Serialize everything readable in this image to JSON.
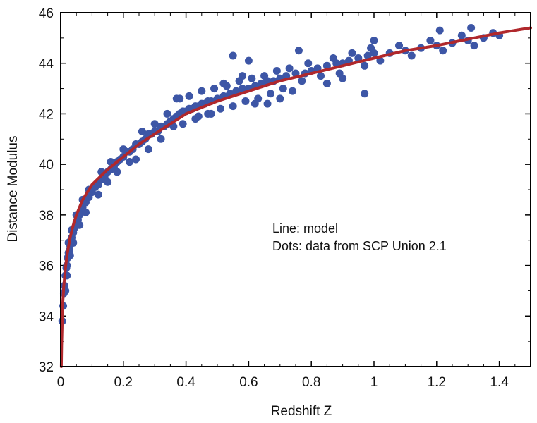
{
  "chart_data": {
    "type": "scatter",
    "xlabel": "Redshift Z",
    "ylabel": "Distance Modulus",
    "xlim": [
      0,
      1.5
    ],
    "ylim": [
      32,
      46
    ],
    "x_ticks": [
      "0",
      "0.2",
      "0.4",
      "0.6",
      "0.8",
      "1",
      "1.2",
      "1.4"
    ],
    "y_ticks": [
      "32",
      "34",
      "36",
      "38",
      "40",
      "42",
      "44",
      "46"
    ],
    "grid": false,
    "annotations": [
      "Line: model",
      "Dots: data from SCP Union 2.1"
    ],
    "colors": {
      "points": "#3d56a6",
      "line": "#b0282c"
    },
    "series": [
      {
        "type": "scatter",
        "points": [
          [
            0.005,
            33.8
          ],
          [
            0.008,
            34.4
          ],
          [
            0.01,
            34.9
          ],
          [
            0.012,
            35.2
          ],
          [
            0.015,
            35.6
          ],
          [
            0.018,
            35.9
          ],
          [
            0.02,
            36.0
          ],
          [
            0.022,
            36.3
          ],
          [
            0.025,
            36.5
          ],
          [
            0.028,
            36.6
          ],
          [
            0.03,
            36.8
          ],
          [
            0.033,
            37.0
          ],
          [
            0.035,
            37.1
          ],
          [
            0.04,
            37.3
          ],
          [
            0.045,
            37.5
          ],
          [
            0.05,
            37.7
          ],
          [
            0.055,
            37.8
          ],
          [
            0.06,
            38.0
          ],
          [
            0.065,
            38.1
          ],
          [
            0.07,
            38.3
          ],
          [
            0.08,
            38.5
          ],
          [
            0.09,
            38.7
          ],
          [
            0.1,
            38.9
          ],
          [
            0.11,
            39.1
          ],
          [
            0.12,
            39.2
          ],
          [
            0.13,
            39.4
          ],
          [
            0.14,
            39.5
          ],
          [
            0.15,
            39.7
          ],
          [
            0.16,
            39.8
          ],
          [
            0.17,
            39.9
          ],
          [
            0.18,
            40.1
          ],
          [
            0.19,
            40.2
          ],
          [
            0.2,
            40.3
          ],
          [
            0.21,
            40.5
          ],
          [
            0.22,
            40.5
          ],
          [
            0.23,
            40.6
          ],
          [
            0.24,
            40.8
          ],
          [
            0.25,
            40.8
          ],
          [
            0.26,
            40.9
          ],
          [
            0.27,
            41.0
          ],
          [
            0.28,
            41.2
          ],
          [
            0.29,
            41.2
          ],
          [
            0.3,
            41.3
          ],
          [
            0.31,
            41.3
          ],
          [
            0.32,
            41.5
          ],
          [
            0.33,
            41.5
          ],
          [
            0.34,
            41.6
          ],
          [
            0.35,
            41.7
          ],
          [
            0.36,
            41.8
          ],
          [
            0.37,
            41.9
          ],
          [
            0.38,
            42.0
          ],
          [
            0.39,
            42.1
          ],
          [
            0.4,
            42.1
          ],
          [
            0.41,
            42.2
          ],
          [
            0.42,
            42.2
          ],
          [
            0.43,
            42.3
          ],
          [
            0.44,
            42.3
          ],
          [
            0.45,
            42.4
          ],
          [
            0.46,
            42.4
          ],
          [
            0.47,
            42.5
          ],
          [
            0.48,
            42.5
          ],
          [
            0.5,
            42.6
          ],
          [
            0.52,
            42.7
          ],
          [
            0.54,
            42.8
          ],
          [
            0.56,
            42.9
          ],
          [
            0.58,
            43.0
          ],
          [
            0.6,
            43.0
          ],
          [
            0.62,
            43.1
          ],
          [
            0.64,
            43.2
          ],
          [
            0.66,
            43.3
          ],
          [
            0.68,
            43.3
          ],
          [
            0.7,
            43.4
          ],
          [
            0.72,
            43.5
          ],
          [
            0.75,
            43.6
          ],
          [
            0.78,
            43.6
          ],
          [
            0.8,
            43.7
          ],
          [
            0.82,
            43.8
          ],
          [
            0.85,
            43.9
          ],
          [
            0.88,
            44.0
          ],
          [
            0.9,
            44.0
          ],
          [
            0.92,
            44.1
          ],
          [
            0.95,
            44.2
          ],
          [
            0.98,
            44.3
          ],
          [
            1.0,
            44.4
          ],
          [
            1.05,
            44.4
          ],
          [
            1.1,
            44.5
          ],
          [
            1.15,
            44.6
          ],
          [
            1.2,
            44.7
          ],
          [
            1.25,
            44.8
          ],
          [
            1.3,
            44.9
          ],
          [
            1.35,
            45.0
          ],
          [
            1.4,
            45.1
          ],
          [
            0.36,
            41.5
          ],
          [
            0.37,
            42.6
          ],
          [
            0.39,
            41.6
          ],
          [
            0.41,
            42.7
          ],
          [
            0.43,
            41.8
          ],
          [
            0.45,
            42.9
          ],
          [
            0.47,
            42.0
          ],
          [
            0.49,
            43.0
          ],
          [
            0.51,
            42.2
          ],
          [
            0.53,
            43.1
          ],
          [
            0.55,
            42.3
          ],
          [
            0.57,
            43.3
          ],
          [
            0.59,
            42.5
          ],
          [
            0.61,
            43.4
          ],
          [
            0.63,
            42.6
          ],
          [
            0.65,
            43.5
          ],
          [
            0.67,
            42.8
          ],
          [
            0.69,
            43.7
          ],
          [
            0.71,
            43.0
          ],
          [
            0.73,
            43.8
          ],
          [
            0.77,
            43.3
          ],
          [
            0.79,
            44.0
          ],
          [
            0.83,
            43.5
          ],
          [
            0.87,
            44.2
          ],
          [
            0.89,
            43.6
          ],
          [
            0.93,
            44.4
          ],
          [
            0.97,
            43.9
          ],
          [
            0.99,
            44.6
          ],
          [
            1.02,
            44.1
          ],
          [
            1.08,
            44.7
          ],
          [
            1.12,
            44.3
          ],
          [
            1.18,
            44.9
          ],
          [
            1.22,
            44.5
          ],
          [
            1.28,
            45.1
          ],
          [
            1.32,
            44.7
          ],
          [
            1.38,
            45.2
          ],
          [
            0.24,
            40.2
          ],
          [
            0.26,
            41.3
          ],
          [
            0.28,
            40.6
          ],
          [
            0.3,
            41.6
          ],
          [
            0.32,
            41.0
          ],
          [
            0.34,
            42.0
          ],
          [
            0.18,
            39.7
          ],
          [
            0.2,
            40.6
          ],
          [
            0.22,
            40.1
          ],
          [
            0.15,
            39.3
          ],
          [
            0.16,
            40.1
          ],
          [
            0.12,
            38.8
          ],
          [
            0.13,
            39.7
          ],
          [
            0.08,
            38.1
          ],
          [
            0.09,
            39.0
          ],
          [
            0.06,
            37.6
          ],
          [
            0.07,
            38.6
          ],
          [
            0.04,
            36.9
          ],
          [
            0.05,
            38.0
          ],
          [
            0.03,
            36.4
          ],
          [
            0.035,
            37.4
          ],
          [
            0.02,
            35.6
          ],
          [
            0.025,
            36.9
          ],
          [
            0.015,
            35.0
          ],
          [
            0.55,
            44.3
          ],
          [
            0.6,
            44.1
          ],
          [
            0.38,
            42.6
          ],
          [
            0.76,
            44.5
          ],
          [
            0.97,
            42.8
          ],
          [
            1.0,
            44.9
          ],
          [
            1.21,
            45.3
          ],
          [
            1.31,
            45.4
          ],
          [
            0.66,
            42.4
          ],
          [
            0.7,
            42.6
          ],
          [
            0.85,
            43.2
          ],
          [
            0.9,
            43.4
          ],
          [
            0.44,
            41.9
          ],
          [
            0.48,
            42.0
          ],
          [
            0.52,
            43.2
          ],
          [
            0.58,
            43.5
          ],
          [
            0.62,
            42.4
          ],
          [
            0.74,
            42.9
          ]
        ]
      },
      {
        "type": "line",
        "points": [
          [
            0.002,
            32.0
          ],
          [
            0.003,
            32.8
          ],
          [
            0.005,
            33.9
          ],
          [
            0.007,
            34.6
          ],
          [
            0.01,
            35.2
          ],
          [
            0.015,
            35.9
          ],
          [
            0.02,
            36.4
          ],
          [
            0.03,
            37.1
          ],
          [
            0.04,
            37.6
          ],
          [
            0.05,
            38.0
          ],
          [
            0.07,
            38.6
          ],
          [
            0.1,
            39.2
          ],
          [
            0.15,
            39.8
          ],
          [
            0.2,
            40.3
          ],
          [
            0.25,
            40.8
          ],
          [
            0.3,
            41.2
          ],
          [
            0.35,
            41.6
          ],
          [
            0.4,
            42.0
          ],
          [
            0.5,
            42.5
          ],
          [
            0.6,
            42.9
          ],
          [
            0.7,
            43.3
          ],
          [
            0.8,
            43.6
          ],
          [
            0.9,
            43.9
          ],
          [
            1.0,
            44.2
          ],
          [
            1.1,
            44.5
          ],
          [
            1.2,
            44.7
          ],
          [
            1.3,
            44.95
          ],
          [
            1.4,
            45.2
          ],
          [
            1.5,
            45.4
          ]
        ]
      }
    ]
  }
}
